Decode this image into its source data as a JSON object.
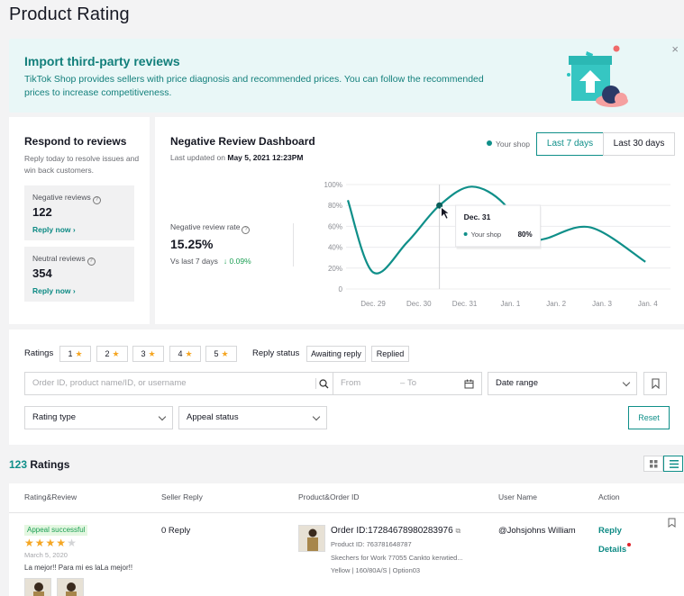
{
  "page": {
    "title": "Product Rating"
  },
  "banner": {
    "heading": "Import third-party reviews",
    "text": "TikTok Shop provides sellers with price diagnosis and recommended prices. You can follow the recommended prices to increase competitiveness.",
    "close": "×"
  },
  "respond": {
    "title": "Respond to reviews",
    "subtitle": "Reply today to resolve issues and win back customers.",
    "negative": {
      "label": "Negative reviews",
      "count": "122",
      "link": "Reply now"
    },
    "neutral": {
      "label": "Neutral reviews",
      "count": "354",
      "link": "Reply now"
    }
  },
  "dashboard": {
    "title": "Negative Review Dashboard",
    "updated_prefix": "Last updated on",
    "updated_value": "May 5, 2021 12:23PM",
    "legend": "Your shop",
    "range_selected": "Last 7 days",
    "range_other": "Last 30 days",
    "rate_label": "Negative review rate",
    "rate_value": "15.25%",
    "compare_label": "Vs last 7 days",
    "compare_value": "↓ 0.09%",
    "tooltip": {
      "date": "Dec. 31",
      "series": "Your shop",
      "value": "80%"
    }
  },
  "chart_data": {
    "type": "line",
    "categories": [
      "Dec. 29",
      "Dec. 30",
      "Dec. 31",
      "Jan. 1",
      "Jan. 2",
      "Jan. 3",
      "Jan. 4"
    ],
    "y_ticks": [
      "0",
      "20%",
      "40%",
      "60%",
      "80%",
      "100%"
    ],
    "ylim": [
      0,
      100
    ],
    "series": [
      {
        "name": "Your shop",
        "color": "#0f8f89",
        "points": [
          [
            0,
            85
          ],
          [
            0.55,
            16
          ],
          [
            1.3,
            45
          ],
          [
            2.0,
            80
          ],
          [
            2.7,
            98
          ],
          [
            3.4,
            82
          ],
          [
            3.85,
            47
          ],
          [
            4.3,
            48
          ],
          [
            5.3,
            59
          ],
          [
            6.5,
            26
          ]
        ]
      }
    ],
    "highlight_index": 2,
    "grid": true
  },
  "filters": {
    "ratings_label": "Ratings",
    "rating_chips": [
      "1",
      "2",
      "3",
      "4",
      "5"
    ],
    "reply_status_label": "Reply status",
    "reply_chips": [
      "Awaiting reply",
      "Replied"
    ],
    "search_placeholder": "Order ID, product name/ID, or username",
    "from_placeholder": "From",
    "to_placeholder": "To",
    "date_range": "Date range",
    "rating_type": "Rating type",
    "appeal_status": "Appeal status",
    "reset": "Reset"
  },
  "ratings": {
    "count": "123",
    "label": "Ratings"
  },
  "table": {
    "headers": [
      "Rating&Review",
      "Seller Reply",
      "Product&Order ID",
      "User Name",
      "Action"
    ],
    "row": {
      "badge": "Appeal successful",
      "stars_on": 4,
      "stars_total": 5,
      "date": "March 5, 2020",
      "review": "La mejor!! Para mi es laLa mejor!!",
      "seller_reply": "0 Reply",
      "order_id": "Order ID:17284678980283976",
      "product_id": "Product ID: 763781648787",
      "product_name": "Skechers for Work 77055 Cankto kerwtied...",
      "variant": "Yellow  |  160/80A/S  |  Option03",
      "user": "@Johsjohns William",
      "action_reply": "Reply",
      "action_details": "Details"
    }
  }
}
